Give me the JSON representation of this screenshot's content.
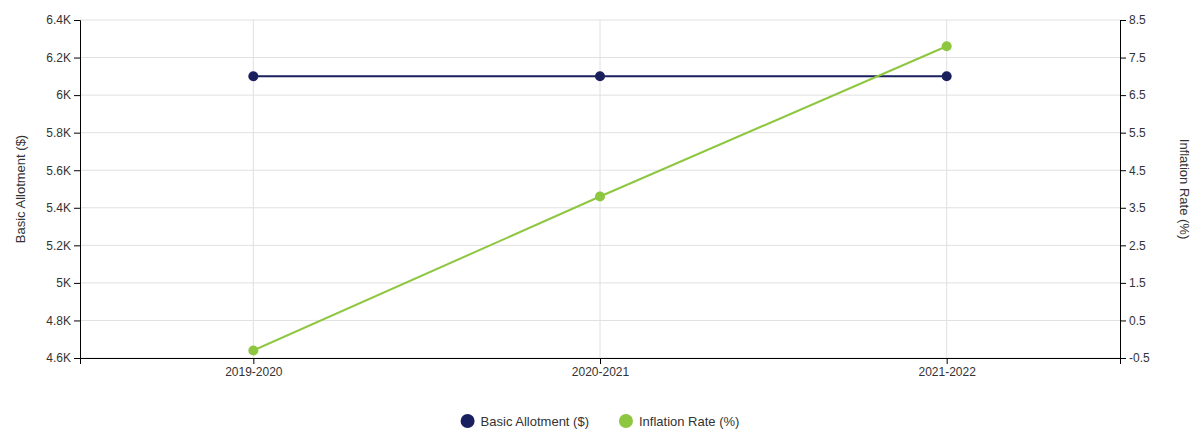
{
  "chart_data": {
    "type": "line",
    "categories": [
      "2019-2020",
      "2020-2021",
      "2021-2022"
    ],
    "series": [
      {
        "name": "Basic Allotment ($)",
        "color": "#1a1f5e",
        "marker": "circle",
        "values": [
          6100,
          6100,
          6100
        ]
      },
      {
        "name": "Inflation Rate (%)",
        "color": "#8dc63f",
        "marker": "circle",
        "axis": "y2",
        "values": [
          -0.3,
          3.8,
          7.8
        ]
      }
    ],
    "ylabel": "Basic Allotment ($)",
    "y2label": "Inflation Rate (%)",
    "ylim": [
      4600,
      6400
    ],
    "yticks": [
      {
        "value": 4600,
        "label": "4.6K"
      },
      {
        "value": 4800,
        "label": "4.8K"
      },
      {
        "value": 5000,
        "label": "5K"
      },
      {
        "value": 5200,
        "label": "5.2K"
      },
      {
        "value": 5400,
        "label": "5.4K"
      },
      {
        "value": 5600,
        "label": "5.6K"
      },
      {
        "value": 5800,
        "label": "5.8K"
      },
      {
        "value": 6000,
        "label": "6K"
      },
      {
        "value": 6200,
        "label": "6.2K"
      },
      {
        "value": 6400,
        "label": "6.4K"
      }
    ],
    "y2lim": [
      -0.5,
      8.5
    ],
    "y2ticks": [
      -0.5,
      0.5,
      1.5,
      2.5,
      3.5,
      4.5,
      5.5,
      6.5,
      7.5,
      8.5
    ],
    "grid": true,
    "legend": "bottom"
  }
}
